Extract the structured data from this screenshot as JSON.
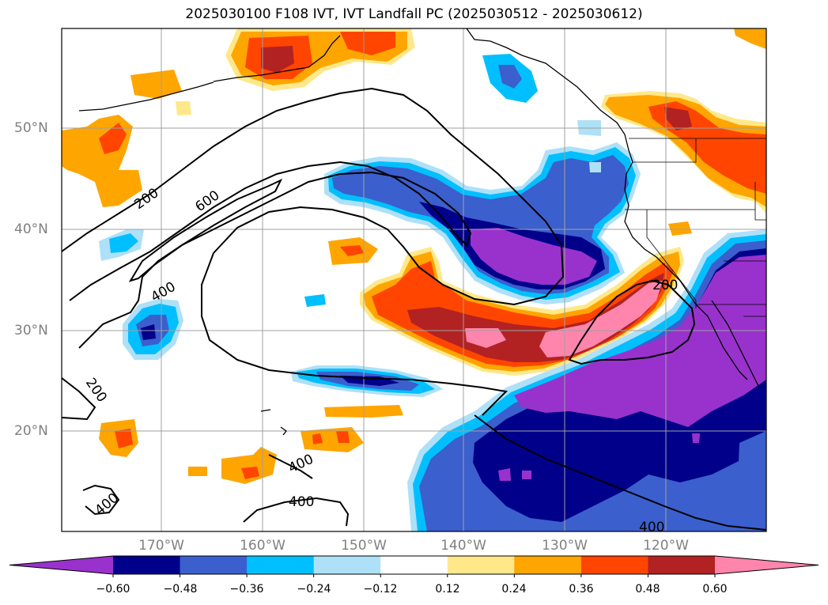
{
  "title": "2025030100 F108 IVT, IVT Landfall PC (2025030512 - 2025030612)",
  "latitude_labels": [
    "50°N",
    "40°N",
    "30°N",
    "20°N"
  ],
  "longitude_labels": [
    "170°W",
    "160°W",
    "150°W",
    "140°W",
    "130°W",
    "120°W"
  ],
  "contour_labels": [
    "200",
    "600",
    "400",
    "200",
    "400",
    "400",
    "400",
    "200"
  ],
  "colorbar": {
    "ticks": [
      "−0.60",
      "−0.48",
      "−0.36",
      "−0.24",
      "−0.12",
      "0.12",
      "0.24",
      "0.36",
      "0.48",
      "0.60"
    ],
    "colors": [
      "#9932cc",
      "#00008b",
      "#3b5fcd",
      "#00bfff",
      "#aee0f8",
      "#ffffff",
      "#ffe88a",
      "#ffa500",
      "#ff4500",
      "#b22222",
      "#ff85ad"
    ]
  },
  "map_extent": {
    "lon_range": [
      "180°W",
      "110°W"
    ],
    "lat_range": [
      "10°N",
      "60°N"
    ]
  }
}
